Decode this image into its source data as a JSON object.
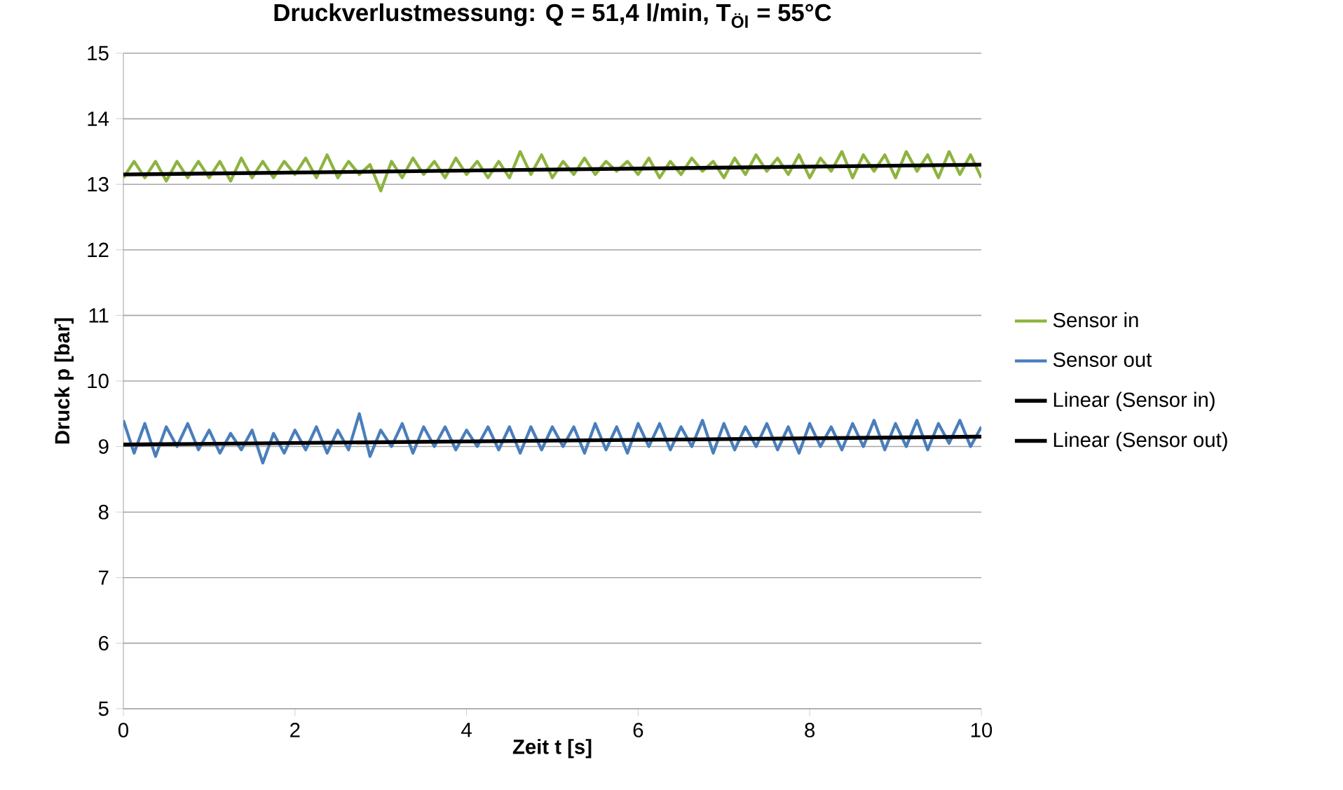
{
  "chart_data": {
    "type": "line",
    "title": "Druckverlustmessung:  Q = 51,4 l/min,  T$_{Öl}$ = 55°C",
    "xlabel": "Zeit t [s]",
    "ylabel": "Druck p [bar]",
    "xlim": [
      0,
      10
    ],
    "xticks": [
      0,
      2,
      4,
      6,
      8,
      10
    ],
    "ylim": [
      5,
      15
    ],
    "yticks": [
      5,
      6,
      7,
      8,
      9,
      10,
      11,
      12,
      13,
      14,
      15
    ],
    "grid": "y",
    "legend": "right",
    "marker": "none",
    "line_style": "solid",
    "series": [
      {
        "name": "Sensor in",
        "color": "#8db33f",
        "x": [
          0,
          0.125,
          0.25,
          0.375,
          0.5,
          0.625,
          0.75,
          0.875,
          1,
          1.125,
          1.25,
          1.375,
          1.5,
          1.625,
          1.75,
          1.875,
          2,
          2.125,
          2.25,
          2.375,
          2.5,
          2.625,
          2.75,
          2.875,
          3,
          3.125,
          3.25,
          3.375,
          3.5,
          3.625,
          3.75,
          3.875,
          4,
          4.125,
          4.25,
          4.375,
          4.5,
          4.625,
          4.75,
          4.875,
          5,
          5.125,
          5.25,
          5.375,
          5.5,
          5.625,
          5.75,
          5.875,
          6,
          6.125,
          6.25,
          6.375,
          6.5,
          6.625,
          6.75,
          6.875,
          7,
          7.125,
          7.25,
          7.375,
          7.5,
          7.625,
          7.75,
          7.875,
          8,
          8.125,
          8.25,
          8.375,
          8.5,
          8.625,
          8.75,
          8.875,
          9,
          9.125,
          9.25,
          9.375,
          9.5,
          9.625,
          9.75,
          9.875,
          10
        ],
        "values": [
          13.1,
          13.35,
          13.1,
          13.35,
          13.05,
          13.35,
          13.1,
          13.35,
          13.1,
          13.35,
          13.05,
          13.4,
          13.1,
          13.35,
          13.1,
          13.35,
          13.15,
          13.4,
          13.1,
          13.45,
          13.1,
          13.35,
          13.15,
          13.3,
          12.9,
          13.35,
          13.1,
          13.4,
          13.15,
          13.35,
          13.1,
          13.4,
          13.15,
          13.35,
          13.1,
          13.35,
          13.1,
          13.5,
          13.15,
          13.45,
          13.1,
          13.35,
          13.15,
          13.4,
          13.15,
          13.35,
          13.2,
          13.35,
          13.15,
          13.4,
          13.1,
          13.35,
          13.15,
          13.4,
          13.2,
          13.35,
          13.1,
          13.4,
          13.15,
          13.45,
          13.2,
          13.4,
          13.15,
          13.45,
          13.1,
          13.4,
          13.2,
          13.5,
          13.1,
          13.45,
          13.2,
          13.45,
          13.1,
          13.5,
          13.2,
          13.45,
          13.1,
          13.5,
          13.15,
          13.45,
          13.1
        ]
      },
      {
        "name": "Sensor out",
        "color": "#4a7ebb",
        "x": [
          0,
          0.125,
          0.25,
          0.375,
          0.5,
          0.625,
          0.75,
          0.875,
          1,
          1.125,
          1.25,
          1.375,
          1.5,
          1.625,
          1.75,
          1.875,
          2,
          2.125,
          2.25,
          2.375,
          2.5,
          2.625,
          2.75,
          2.875,
          3,
          3.125,
          3.25,
          3.375,
          3.5,
          3.625,
          3.75,
          3.875,
          4,
          4.125,
          4.25,
          4.375,
          4.5,
          4.625,
          4.75,
          4.875,
          5,
          5.125,
          5.25,
          5.375,
          5.5,
          5.625,
          5.75,
          5.875,
          6,
          6.125,
          6.25,
          6.375,
          6.5,
          6.625,
          6.75,
          6.875,
          7,
          7.125,
          7.25,
          7.375,
          7.5,
          7.625,
          7.75,
          7.875,
          8,
          8.125,
          8.25,
          8.375,
          8.5,
          8.625,
          8.75,
          8.875,
          9,
          9.125,
          9.25,
          9.375,
          9.5,
          9.625,
          9.75,
          9.875,
          10
        ],
        "values": [
          9.4,
          8.9,
          9.35,
          8.85,
          9.3,
          9.0,
          9.35,
          8.95,
          9.25,
          8.9,
          9.2,
          8.95,
          9.25,
          8.75,
          9.2,
          8.9,
          9.25,
          8.95,
          9.3,
          8.9,
          9.25,
          8.95,
          9.5,
          8.85,
          9.25,
          9.0,
          9.35,
          8.9,
          9.3,
          9.0,
          9.3,
          8.95,
          9.25,
          9.0,
          9.3,
          8.95,
          9.3,
          8.9,
          9.3,
          8.95,
          9.3,
          9.0,
          9.3,
          8.9,
          9.35,
          8.95,
          9.3,
          8.9,
          9.35,
          9.0,
          9.35,
          8.95,
          9.3,
          9.0,
          9.4,
          8.9,
          9.35,
          8.95,
          9.3,
          9.0,
          9.35,
          8.95,
          9.3,
          8.9,
          9.35,
          9.0,
          9.3,
          8.95,
          9.35,
          9.0,
          9.4,
          8.95,
          9.35,
          9.0,
          9.4,
          8.95,
          9.35,
          9.05,
          9.4,
          9.0,
          9.3
        ]
      },
      {
        "name": "Linear (Sensor in)",
        "type": "line",
        "color": "#000000",
        "x": [
          0,
          10
        ],
        "values": [
          13.15,
          13.3
        ]
      },
      {
        "name": "Linear (Sensor out)",
        "type": "line",
        "color": "#000000",
        "x": [
          0,
          10
        ],
        "values": [
          9.03,
          9.15
        ]
      }
    ]
  }
}
